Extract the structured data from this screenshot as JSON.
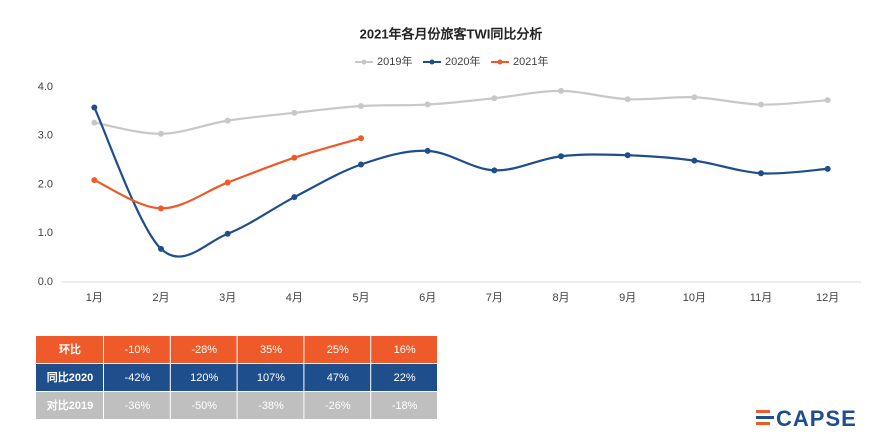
{
  "chart_data": {
    "type": "line",
    "title": "2021年各月份旅客TWI同比分析",
    "categories": [
      "1月",
      "2月",
      "3月",
      "4月",
      "5月",
      "6月",
      "7月",
      "8月",
      "9月",
      "10月",
      "11月",
      "12月"
    ],
    "series": [
      {
        "name": "2019年",
        "color": "#c8c8c8",
        "values": [
          3.27,
          3.04,
          3.31,
          3.47,
          3.61,
          3.64,
          3.77,
          3.92,
          3.75,
          3.79,
          3.64,
          3.73
        ]
      },
      {
        "name": "2020年",
        "color": "#1f4e8c",
        "values": [
          3.58,
          0.68,
          0.99,
          1.74,
          2.41,
          2.69,
          2.29,
          2.58,
          2.6,
          2.49,
          2.23,
          2.32
        ]
      },
      {
        "name": "2021年",
        "color": "#ee5a2a",
        "values": [
          2.09,
          1.51,
          2.04,
          2.55,
          2.95,
          null,
          null,
          null,
          null,
          null,
          null,
          null
        ]
      }
    ],
    "ylim": [
      0,
      4
    ],
    "yticks": [
      {
        "value": 0,
        "label": "0.0"
      },
      {
        "value": 1,
        "label": "1.0"
      },
      {
        "value": 2,
        "label": "2.0"
      },
      {
        "value": 3,
        "label": "3.0"
      },
      {
        "value": 4,
        "label": "4.0"
      }
    ],
    "legend": "top",
    "smooth": true
  },
  "table": {
    "rows": [
      [
        "环比",
        "-10%",
        "-28%",
        "35%",
        "25%",
        "16%"
      ],
      [
        "同比2020",
        "-42%",
        "120%",
        "107%",
        "47%",
        "22%"
      ],
      [
        "对比2019",
        "-36%",
        "-50%",
        "-38%",
        "-26%",
        "-18%"
      ]
    ]
  },
  "logo": "CAPSE"
}
